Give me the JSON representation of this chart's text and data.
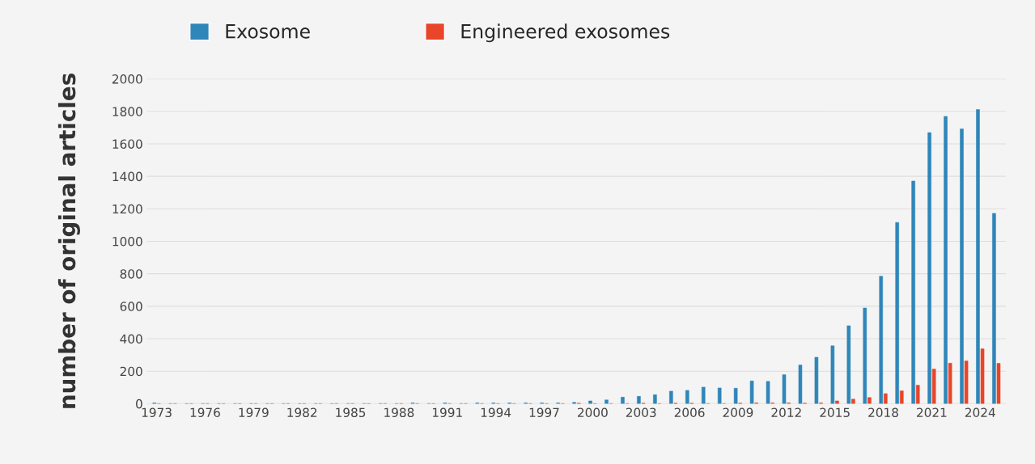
{
  "chart_data": {
    "type": "bar",
    "ylabel": "number of original articles",
    "categories": [
      "1973",
      null,
      null,
      "1976",
      null,
      null,
      "1979",
      null,
      null,
      "1982",
      null,
      null,
      "1985",
      null,
      null,
      "1988",
      null,
      null,
      "1991",
      null,
      null,
      "1994",
      null,
      null,
      "1997",
      null,
      null,
      "2000",
      null,
      null,
      "2003",
      null,
      null,
      "2006",
      null,
      null,
      "2009",
      null,
      null,
      "2012",
      null,
      null,
      "2015",
      null,
      null,
      "2018",
      null,
      null,
      "2021",
      null,
      null,
      "2024",
      null
    ],
    "series": [
      {
        "name": "Exosome",
        "color": "#2f86b9",
        "values": [
          5,
          0,
          0,
          0,
          0,
          0,
          0,
          0,
          0,
          0,
          0,
          0,
          0,
          0,
          0,
          0,
          5,
          0,
          5,
          0,
          5,
          5,
          5,
          5,
          5,
          5,
          8,
          17,
          23,
          40,
          45,
          55,
          77,
          82,
          102,
          97,
          95,
          140,
          137,
          178,
          238,
          286,
          356,
          480,
          589,
          785,
          1116,
          1371,
          1669,
          1769,
          1692,
          1811,
          1172
        ]
      },
      {
        "name": "Engineered exosomes",
        "color": "#e8452a",
        "values": [
          0,
          0,
          0,
          0,
          0,
          0,
          0,
          0,
          0,
          0,
          0,
          0,
          0,
          0,
          0,
          0,
          0,
          0,
          0,
          0,
          0,
          0,
          0,
          0,
          0,
          0,
          3,
          0,
          0,
          0,
          3,
          0,
          3,
          3,
          0,
          0,
          3,
          5,
          5,
          5,
          3,
          5,
          17,
          28,
          38,
          62,
          79,
          114,
          213,
          249,
          263,
          338,
          248
        ]
      }
    ],
    "ylim": [
      0,
      2000
    ],
    "yticks": [
      0,
      200,
      400,
      600,
      800,
      1000,
      1200,
      1400,
      1600,
      1800,
      2000
    ],
    "grid": "y",
    "legend": "top left"
  }
}
